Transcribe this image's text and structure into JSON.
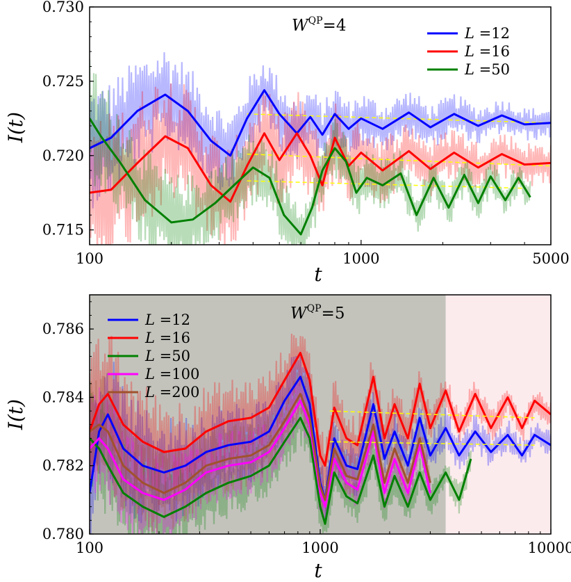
{
  "chart_data": [
    {
      "type": "line",
      "title": "W^QP=4",
      "title_main": "W",
      "title_sup": "QP",
      "title_rest": "=4",
      "xlabel": "t",
      "ylabel": "I(t)",
      "xscale": "log",
      "xlim": [
        100,
        5000
      ],
      "ylim": [
        0.714,
        0.73
      ],
      "xticks": [
        100,
        1000,
        5000
      ],
      "xtick_labels": [
        "100",
        "1000",
        "5000"
      ],
      "yticks": [
        0.715,
        0.72,
        0.725,
        0.73
      ],
      "ytick_labels": [
        "0.715",
        "0.720",
        "0.725",
        "0.730"
      ],
      "legend_position": "top-right",
      "series": [
        {
          "name": "L =12",
          "color": "#0000ff",
          "x": [
            100,
            120,
            150,
            190,
            230,
            280,
            330,
            380,
            440,
            500,
            580,
            650,
            720,
            800,
            900,
            1000,
            1200,
            1500,
            1800,
            2200,
            2700,
            3300,
            4000,
            5000
          ],
          "y": [
            0.7205,
            0.7212,
            0.723,
            0.7241,
            0.723,
            0.721,
            0.72,
            0.7225,
            0.7244,
            0.7228,
            0.7215,
            0.7226,
            0.7214,
            0.7228,
            0.7218,
            0.7225,
            0.7218,
            0.7229,
            0.7219,
            0.7228,
            0.722,
            0.7227,
            0.7221,
            0.7222
          ]
        },
        {
          "name": "L =16",
          "color": "#ff0000",
          "x": [
            100,
            120,
            150,
            190,
            230,
            280,
            330,
            380,
            440,
            500,
            580,
            650,
            720,
            800,
            900,
            1000,
            1200,
            1500,
            1800,
            2200,
            2700,
            3300,
            4000,
            5000
          ],
          "y": [
            0.7175,
            0.7177,
            0.7195,
            0.7213,
            0.7205,
            0.718,
            0.7169,
            0.7193,
            0.7215,
            0.7197,
            0.7215,
            0.72,
            0.718,
            0.7212,
            0.7193,
            0.7202,
            0.719,
            0.7203,
            0.7191,
            0.7202,
            0.7192,
            0.7201,
            0.7194,
            0.7195
          ]
        },
        {
          "name": "L =50",
          "color": "#008000",
          "x": [
            100,
            110,
            130,
            160,
            200,
            240,
            290,
            340,
            400,
            460,
            520,
            600,
            660,
            720,
            800,
            880,
            960,
            1050,
            1200,
            1400,
            1600,
            1850,
            2100,
            2400,
            2700,
            3000,
            3400,
            3800,
            4200
          ],
          "y": [
            0.7225,
            0.7213,
            0.7195,
            0.717,
            0.7155,
            0.7157,
            0.7168,
            0.718,
            0.7192,
            0.7185,
            0.716,
            0.7147,
            0.7165,
            0.719,
            0.7205,
            0.7196,
            0.7175,
            0.7185,
            0.718,
            0.7188,
            0.716,
            0.7185,
            0.7165,
            0.7187,
            0.7168,
            0.7186,
            0.717,
            0.7185,
            0.7172
          ]
        }
      ],
      "fits": [
        {
          "color": "#ffff00",
          "x": [
            380,
            5000
          ],
          "y": [
            0.7228,
            0.7222
          ]
        },
        {
          "color": "#ffff00",
          "x": [
            380,
            5000
          ],
          "y": [
            0.7201,
            0.7193
          ]
        },
        {
          "color": "#ffff00",
          "x": [
            380,
            4000
          ],
          "y": [
            0.7183,
            0.7178
          ]
        }
      ]
    },
    {
      "type": "line",
      "title": "W^QP=5",
      "title_main": "W",
      "title_sup": "QP",
      "title_rest": "=5",
      "xlabel": "t",
      "ylabel": "I(t)",
      "xscale": "log",
      "xlim": [
        100,
        10000
      ],
      "ylim": [
        0.78,
        0.787
      ],
      "xticks": [
        100,
        1000,
        10000
      ],
      "xtick_labels": [
        "100",
        "1000",
        "10000"
      ],
      "yticks": [
        0.78,
        0.782,
        0.784,
        0.786
      ],
      "ytick_labels": [
        "0.780",
        "0.782",
        "0.784",
        "0.786"
      ],
      "legend_position": "top-left",
      "series": [
        {
          "name": "L =12",
          "color": "#0000ff",
          "x": [
            100,
            110,
            120,
            140,
            170,
            210,
            260,
            320,
            400,
            500,
            600,
            700,
            820,
            900,
            1000,
            1050,
            1150,
            1300,
            1450,
            1700,
            1900,
            2100,
            2400,
            2700,
            3000,
            3500,
            4000,
            4700,
            5500,
            6500,
            7500,
            8500,
            10000
          ],
          "y": [
            0.7812,
            0.783,
            0.7835,
            0.7825,
            0.782,
            0.7818,
            0.782,
            0.7824,
            0.7826,
            0.7827,
            0.783,
            0.7839,
            0.7846,
            0.7838,
            0.7815,
            0.781,
            0.7828,
            0.782,
            0.7819,
            0.7838,
            0.7822,
            0.783,
            0.782,
            0.7834,
            0.7823,
            0.7831,
            0.7823,
            0.783,
            0.7824,
            0.7829,
            0.7823,
            0.7829,
            0.7826
          ]
        },
        {
          "name": "L =16",
          "color": "#ff0000",
          "x": [
            100,
            110,
            120,
            140,
            170,
            210,
            260,
            320,
            400,
            500,
            600,
            700,
            820,
            900,
            1000,
            1050,
            1150,
            1300,
            1450,
            1700,
            1900,
            2100,
            2400,
            2700,
            3000,
            3500,
            4000,
            4700,
            5500,
            6500,
            7500,
            8500,
            10000
          ],
          "y": [
            0.783,
            0.7838,
            0.7841,
            0.7832,
            0.7827,
            0.7824,
            0.7825,
            0.783,
            0.7833,
            0.7834,
            0.7837,
            0.7845,
            0.7853,
            0.7845,
            0.7823,
            0.782,
            0.7837,
            0.7828,
            0.7826,
            0.7846,
            0.7828,
            0.7838,
            0.7828,
            0.7844,
            0.7831,
            0.7842,
            0.783,
            0.7841,
            0.7831,
            0.784,
            0.7831,
            0.7839,
            0.7835
          ]
        },
        {
          "name": "L =50",
          "color": "#008000",
          "x": [
            100,
            110,
            120,
            140,
            170,
            210,
            260,
            320,
            400,
            500,
            600,
            700,
            820,
            900,
            1000,
            1050,
            1150,
            1300,
            1450,
            1700,
            1900,
            2100,
            2400,
            2700,
            3000,
            3500,
            4000,
            4500
          ],
          "y": [
            0.7828,
            0.7825,
            0.782,
            0.7812,
            0.7808,
            0.7805,
            0.7808,
            0.7812,
            0.7815,
            0.7817,
            0.782,
            0.7827,
            0.7834,
            0.7828,
            0.7808,
            0.7803,
            0.7818,
            0.7811,
            0.7809,
            0.7823,
            0.7808,
            0.7817,
            0.7808,
            0.7818,
            0.781,
            0.7818,
            0.781,
            0.7822
          ]
        },
        {
          "name": "L =100",
          "color": "#ff00ff",
          "x": [
            100,
            110,
            120,
            140,
            170,
            210,
            260,
            320,
            400,
            500,
            600,
            700,
            820,
            900,
            1000,
            1050,
            1150,
            1300,
            1450,
            1700,
            1900,
            2100,
            2400,
            2700,
            3000
          ],
          "y": [
            0.7825,
            0.7828,
            0.7825,
            0.7816,
            0.7812,
            0.781,
            0.7813,
            0.7818,
            0.782,
            0.7821,
            0.7824,
            0.7831,
            0.7839,
            0.7832,
            0.7812,
            0.7808,
            0.7822,
            0.7815,
            0.7813,
            0.783,
            0.7812,
            0.7822,
            0.7812,
            0.7826,
            0.7812
          ]
        },
        {
          "name": "L =200",
          "color": "#a0522d",
          "x": [
            100,
            110,
            120,
            140,
            170,
            210,
            260,
            320,
            400,
            500,
            600,
            700,
            820,
            900,
            1000,
            1050,
            1150,
            1300,
            1450,
            1700,
            1900,
            2100,
            2400,
            2700,
            3000
          ],
          "y": [
            0.783,
            0.7832,
            0.783,
            0.782,
            0.7815,
            0.7812,
            0.7815,
            0.782,
            0.7822,
            0.7823,
            0.7826,
            0.7833,
            0.7841,
            0.7834,
            0.7814,
            0.781,
            0.7825,
            0.7817,
            0.7816,
            0.7832,
            0.7815,
            0.7825,
            0.7815,
            0.7828,
            0.7815
          ]
        }
      ],
      "fits": [
        {
          "color": "#ffff00",
          "x": [
            1100,
            8500
          ],
          "y": [
            0.7836,
            0.7834
          ]
        },
        {
          "color": "#ffff00",
          "x": [
            1100,
            8500
          ],
          "y": [
            0.7827,
            0.7826
          ]
        }
      ]
    }
  ]
}
